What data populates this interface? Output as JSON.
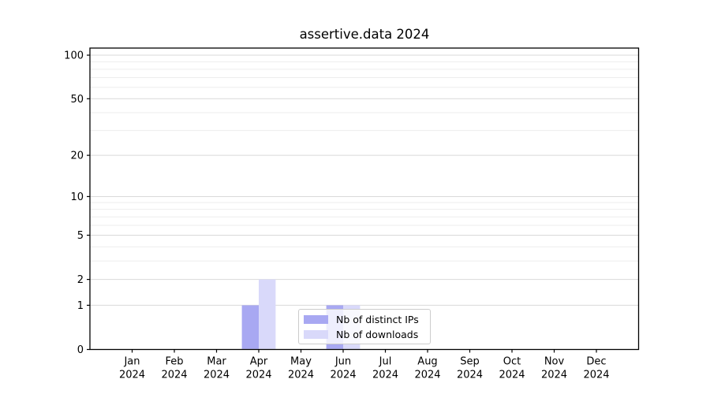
{
  "chart_data": {
    "type": "bar",
    "title": "assertive.data 2024",
    "categories": [
      {
        "month": "Jan",
        "year": "2024"
      },
      {
        "month": "Feb",
        "year": "2024"
      },
      {
        "month": "Mar",
        "year": "2024"
      },
      {
        "month": "Apr",
        "year": "2024"
      },
      {
        "month": "May",
        "year": "2024"
      },
      {
        "month": "Jun",
        "year": "2024"
      },
      {
        "month": "Jul",
        "year": "2024"
      },
      {
        "month": "Aug",
        "year": "2024"
      },
      {
        "month": "Sep",
        "year": "2024"
      },
      {
        "month": "Oct",
        "year": "2024"
      },
      {
        "month": "Nov",
        "year": "2024"
      },
      {
        "month": "Dec",
        "year": "2024"
      }
    ],
    "series": [
      {
        "name": "Nb of distinct IPs",
        "color": "#a8a8f2",
        "values": [
          0,
          0,
          0,
          1,
          0,
          1,
          0,
          0,
          0,
          0,
          0,
          0
        ]
      },
      {
        "name": "Nb of downloads",
        "color": "#d9d9fa",
        "values": [
          0,
          0,
          0,
          2,
          0,
          1,
          0,
          0,
          0,
          0,
          0,
          0
        ]
      }
    ],
    "ylabel": "",
    "xlabel": "",
    "scale": "log1p",
    "ylim": [
      0,
      100
    ],
    "yticks": [
      0,
      1,
      2,
      5,
      10,
      20,
      50,
      100
    ],
    "minor_gridline_values": [
      3,
      4,
      6,
      7,
      8,
      9,
      30,
      40,
      60,
      70,
      80,
      90
    ],
    "grid": "horizontal",
    "legend_position": "lower center",
    "gridline_major_color": "#d9d9d9",
    "gridline_minor_color": "#ededed"
  }
}
